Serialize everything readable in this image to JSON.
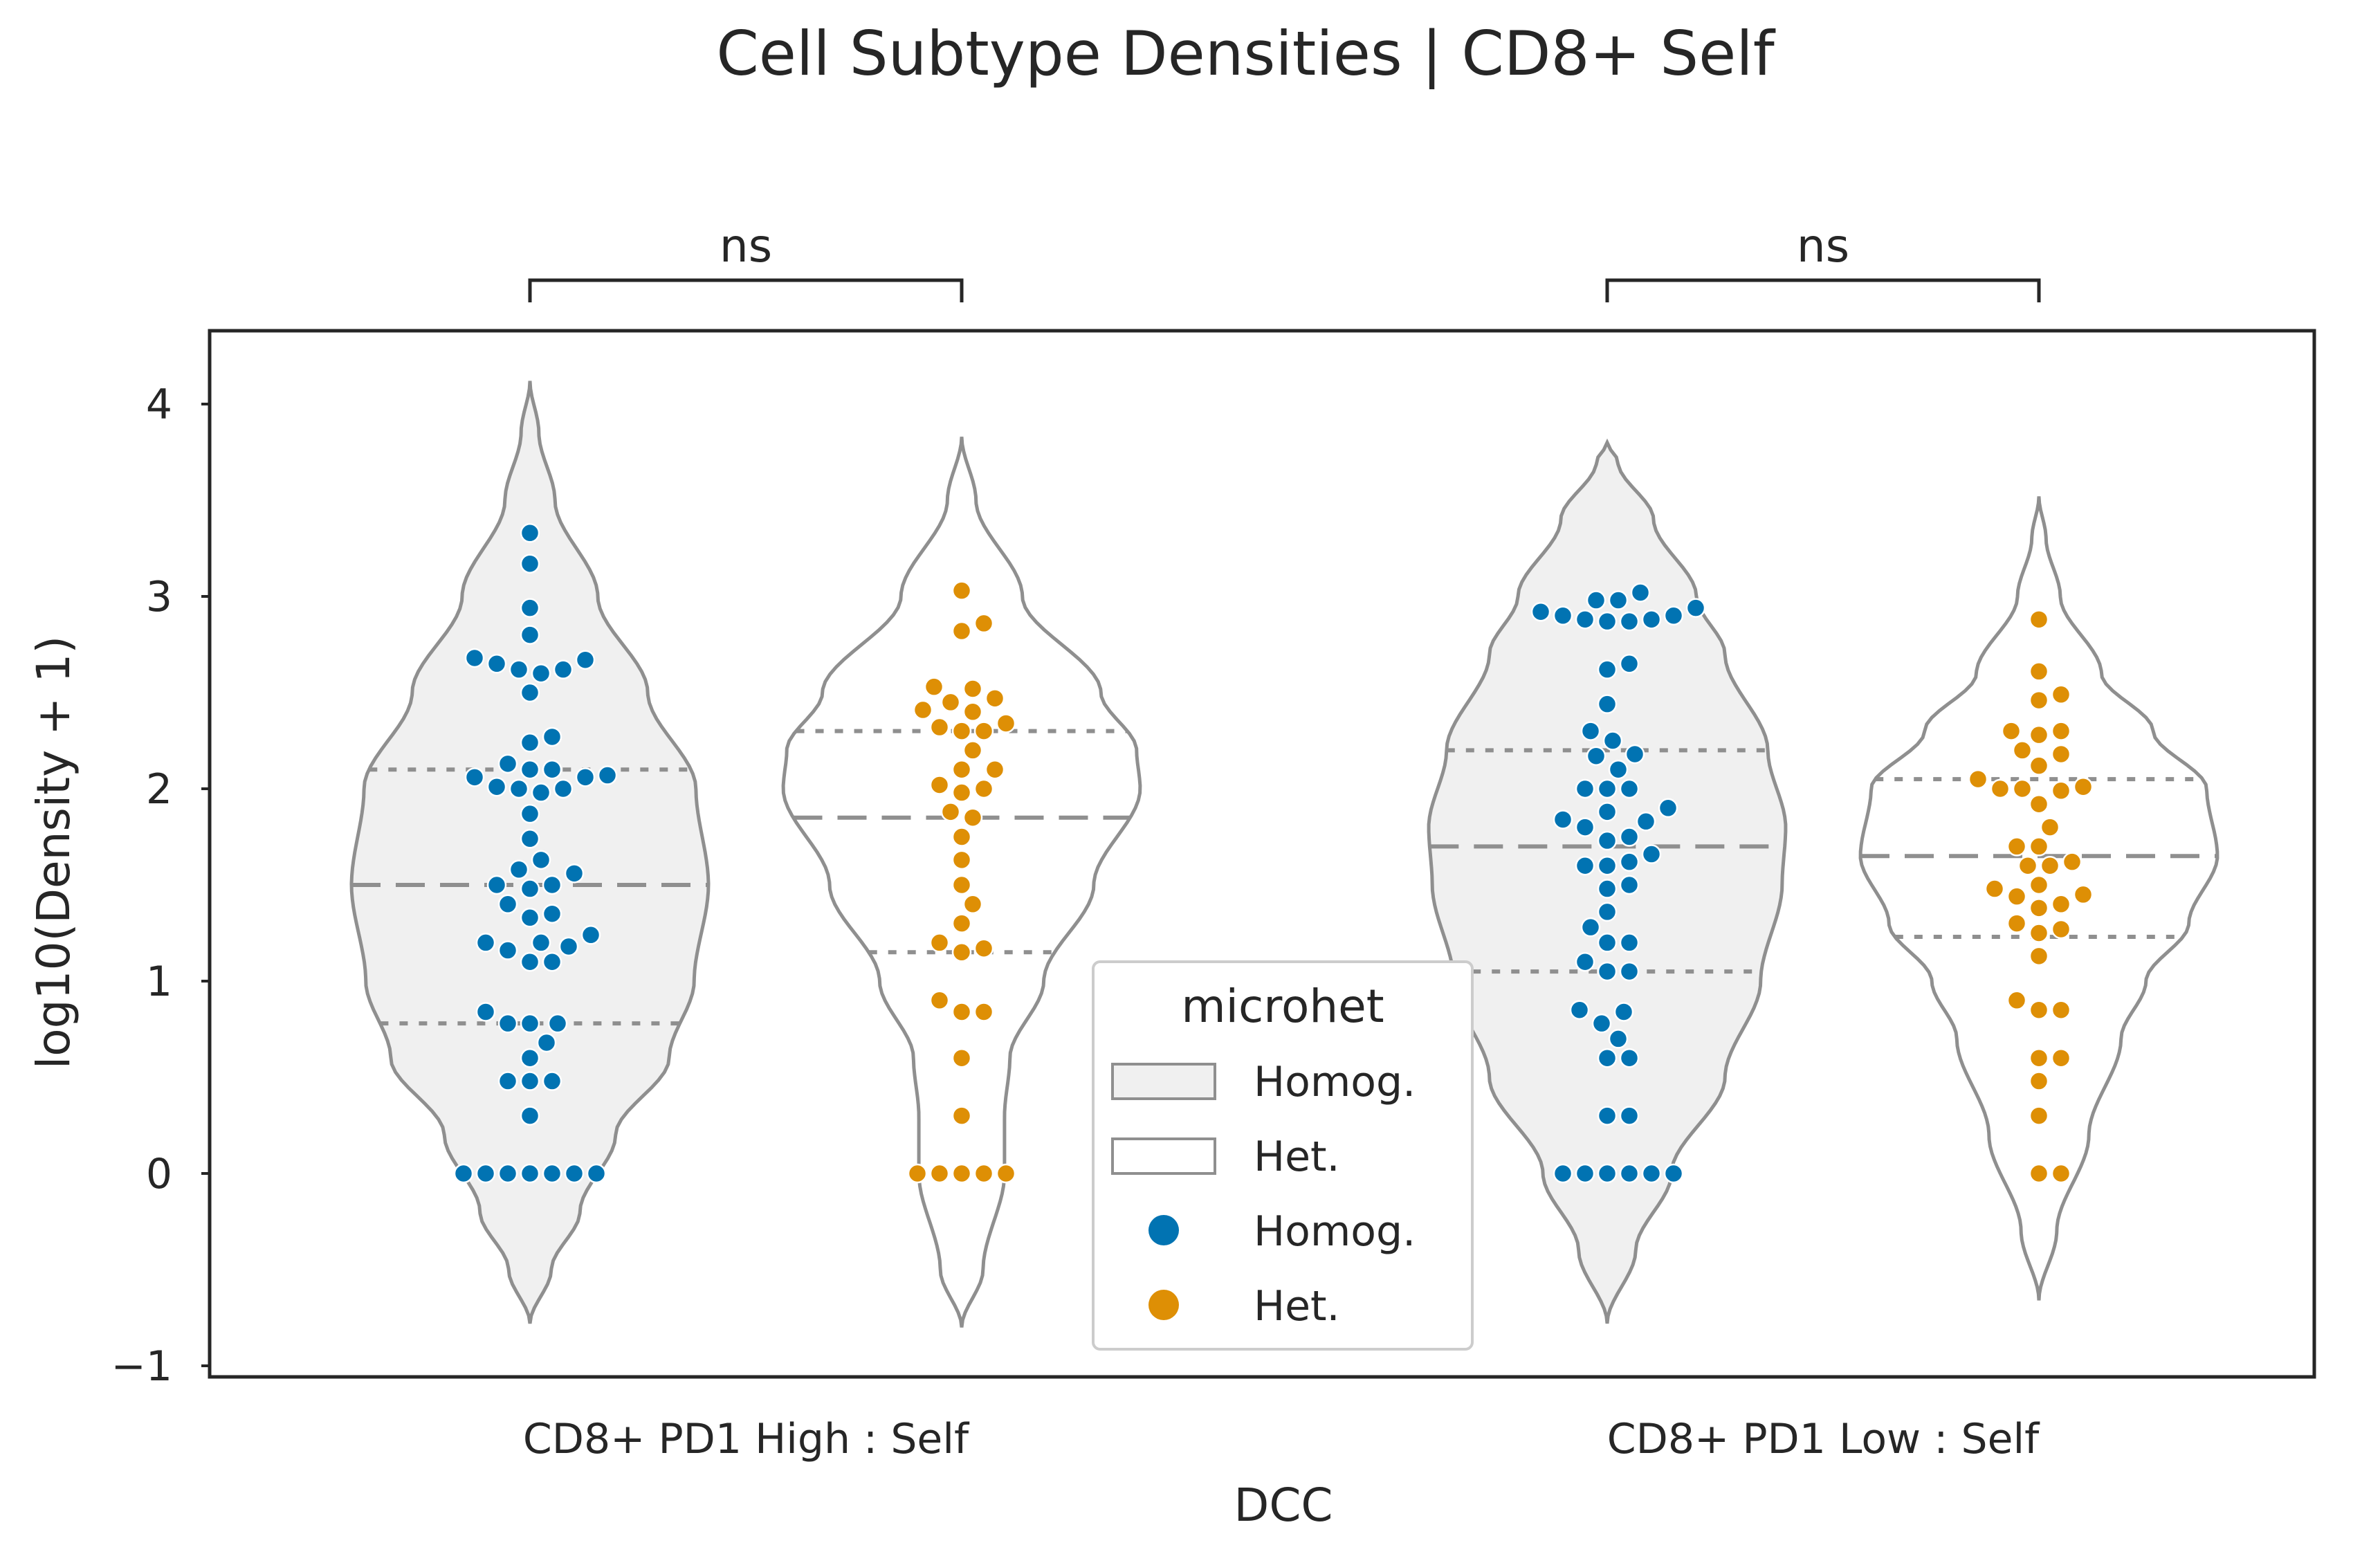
{
  "chart_data": {
    "type": "violin",
    "title": "Cell Subtype Densities | CD8+ Self",
    "xlabel": "DCC",
    "ylabel": "log10(Density + 1)",
    "ylim": [
      -1.05,
      4.35
    ],
    "yticks": [
      {
        "value": 4,
        "label": "4"
      },
      {
        "value": 3,
        "label": "3"
      },
      {
        "value": 2,
        "label": "2"
      },
      {
        "value": 1,
        "label": "1"
      },
      {
        "value": 0,
        "label": "0"
      },
      {
        "value": -1,
        "label": "−1"
      }
    ],
    "categories": [
      "CD8+ PD1 High : Self",
      "CD8+ PD1 Low : Self"
    ],
    "hue_name": "microhet",
    "colors": {
      "Homog.": "#0173b2",
      "Het.": "#de8f05",
      "violin_fill_homog": "#f0f0f0",
      "violin_outline": "#8f8f8f",
      "spine": "#262626"
    },
    "significance": [
      {
        "category": "CD8+ PD1 High : Self",
        "label": "ns"
      },
      {
        "category": "CD8+ PD1 Low : Self",
        "label": "ns"
      }
    ],
    "legend": {
      "title": "microhet",
      "position": "lower center",
      "entries": [
        {
          "kind": "violin-patch",
          "label": "Homog.",
          "fill": "#f0f0f0"
        },
        {
          "kind": "violin-patch",
          "label": "Het.",
          "fill": "#ffffff"
        },
        {
          "kind": "point",
          "label": "Homog.",
          "color": "#0173b2"
        },
        {
          "kind": "point",
          "label": "Het.",
          "color": "#de8f05"
        }
      ]
    },
    "series": [
      {
        "category": "CD8+ PD1 High : Self",
        "hue": "Homog.",
        "violin": {
          "min": -0.78,
          "max": 4.12,
          "q1": 0.78,
          "median": 1.5,
          "q3": 2.1,
          "profile": [
            [
              -0.78,
              0.0
            ],
            [
              -0.5,
              0.12
            ],
            [
              -0.2,
              0.28
            ],
            [
              0.2,
              0.48
            ],
            [
              0.6,
              0.78
            ],
            [
              1.0,
              0.92
            ],
            [
              1.5,
              1.0
            ],
            [
              2.0,
              0.93
            ],
            [
              2.5,
              0.66
            ],
            [
              3.0,
              0.38
            ],
            [
              3.5,
              0.14
            ],
            [
              3.85,
              0.05
            ],
            [
              4.12,
              0.0
            ]
          ]
        },
        "points": [
          3.33,
          3.17,
          2.94,
          2.8,
          2.68,
          2.65,
          2.62,
          2.6,
          2.62,
          2.67,
          2.5,
          2.27,
          2.24,
          2.13,
          2.1,
          2.07,
          2.06,
          2.06,
          2.1,
          2.0,
          2.0,
          1.98,
          2.01,
          1.87,
          1.74,
          1.63,
          1.56,
          1.58,
          1.5,
          1.5,
          1.48,
          1.4,
          1.33,
          1.35,
          1.24,
          1.2,
          1.18,
          1.16,
          1.2,
          1.1,
          1.1,
          0.84,
          0.78,
          0.78,
          0.78,
          0.68,
          0.6,
          0.48,
          0.48,
          0.48,
          0.3,
          0,
          0,
          0,
          0,
          0,
          0,
          0
        ]
      },
      {
        "category": "CD8+ PD1 High : Self",
        "hue": "Het.",
        "violin": {
          "min": -0.8,
          "max": 3.83,
          "q1": 1.15,
          "median": 1.85,
          "q3": 2.3,
          "profile": [
            [
              -0.8,
              0.0
            ],
            [
              -0.5,
              0.12
            ],
            [
              0.0,
              0.24
            ],
            [
              0.3,
              0.24
            ],
            [
              0.6,
              0.27
            ],
            [
              1.0,
              0.46
            ],
            [
              1.5,
              0.74
            ],
            [
              2.0,
              1.0
            ],
            [
              2.2,
              0.98
            ],
            [
              2.5,
              0.78
            ],
            [
              3.0,
              0.34
            ],
            [
              3.5,
              0.08
            ],
            [
              3.83,
              0.0
            ]
          ]
        },
        "points": [
          3.03,
          2.86,
          2.82,
          2.53,
          2.52,
          2.47,
          2.45,
          2.41,
          2.4,
          2.34,
          2.32,
          2.3,
          2.3,
          2.2,
          2.1,
          2.1,
          2.02,
          2.0,
          1.98,
          1.88,
          1.85,
          1.75,
          1.63,
          1.5,
          1.4,
          1.3,
          1.2,
          1.17,
          1.15,
          0.9,
          0.84,
          0.84,
          0.6,
          0.3,
          0,
          0,
          0,
          0,
          0
        ]
      },
      {
        "category": "CD8+ PD1 Low : Self",
        "hue": "Homog.",
        "violin": {
          "min": -0.78,
          "max": 3.8,
          "q1": 1.05,
          "median": 1.7,
          "q3": 2.2,
          "profile": [
            [
              -0.78,
              0.0
            ],
            [
              -0.4,
              0.16
            ],
            [
              0.0,
              0.36
            ],
            [
              0.5,
              0.66
            ],
            [
              1.0,
              0.86
            ],
            [
              1.5,
              0.98
            ],
            [
              1.8,
              1.0
            ],
            [
              2.2,
              0.9
            ],
            [
              2.7,
              0.66
            ],
            [
              3.0,
              0.5
            ],
            [
              3.4,
              0.26
            ],
            [
              3.7,
              0.06
            ],
            [
              3.8,
              0.0
            ]
          ]
        },
        "points": [
          3.02,
          2.98,
          2.98,
          2.94,
          2.92,
          2.9,
          2.9,
          2.88,
          2.87,
          2.87,
          2.88,
          2.65,
          2.62,
          2.44,
          2.3,
          2.25,
          2.18,
          2.17,
          2.1,
          2.0,
          2.0,
          2.0,
          1.9,
          1.88,
          1.84,
          1.83,
          1.8,
          1.75,
          1.73,
          1.66,
          1.62,
          1.6,
          1.6,
          1.5,
          1.48,
          1.36,
          1.28,
          1.2,
          1.2,
          1.1,
          1.05,
          1.05,
          0.85,
          0.84,
          0.78,
          0.7,
          0.6,
          0.6,
          0.3,
          0.3,
          0,
          0,
          0,
          0,
          0,
          0
        ]
      },
      {
        "category": "CD8+ PD1 Low : Self",
        "hue": "Het.",
        "violin": {
          "min": -0.66,
          "max": 3.52,
          "q1": 1.23,
          "median": 1.65,
          "q3": 2.05,
          "profile": [
            [
              -0.66,
              0.0
            ],
            [
              -0.3,
              0.1
            ],
            [
              0.2,
              0.28
            ],
            [
              0.7,
              0.46
            ],
            [
              1.0,
              0.6
            ],
            [
              1.3,
              0.84
            ],
            [
              1.65,
              1.0
            ],
            [
              2.0,
              0.94
            ],
            [
              2.3,
              0.64
            ],
            [
              2.6,
              0.35
            ],
            [
              3.0,
              0.12
            ],
            [
              3.3,
              0.04
            ],
            [
              3.52,
              0.0
            ]
          ]
        },
        "points": [
          2.88,
          2.61,
          2.49,
          2.46,
          2.3,
          2.3,
          2.28,
          2.2,
          2.18,
          2.12,
          2.05,
          2.01,
          2.0,
          2.0,
          1.99,
          1.92,
          1.8,
          1.7,
          1.7,
          1.62,
          1.6,
          1.6,
          1.5,
          1.48,
          1.45,
          1.44,
          1.4,
          1.38,
          1.3,
          1.27,
          1.25,
          1.13,
          0.9,
          0.85,
          0.85,
          0.6,
          0.6,
          0.48,
          0.3,
          0,
          0
        ]
      }
    ]
  }
}
